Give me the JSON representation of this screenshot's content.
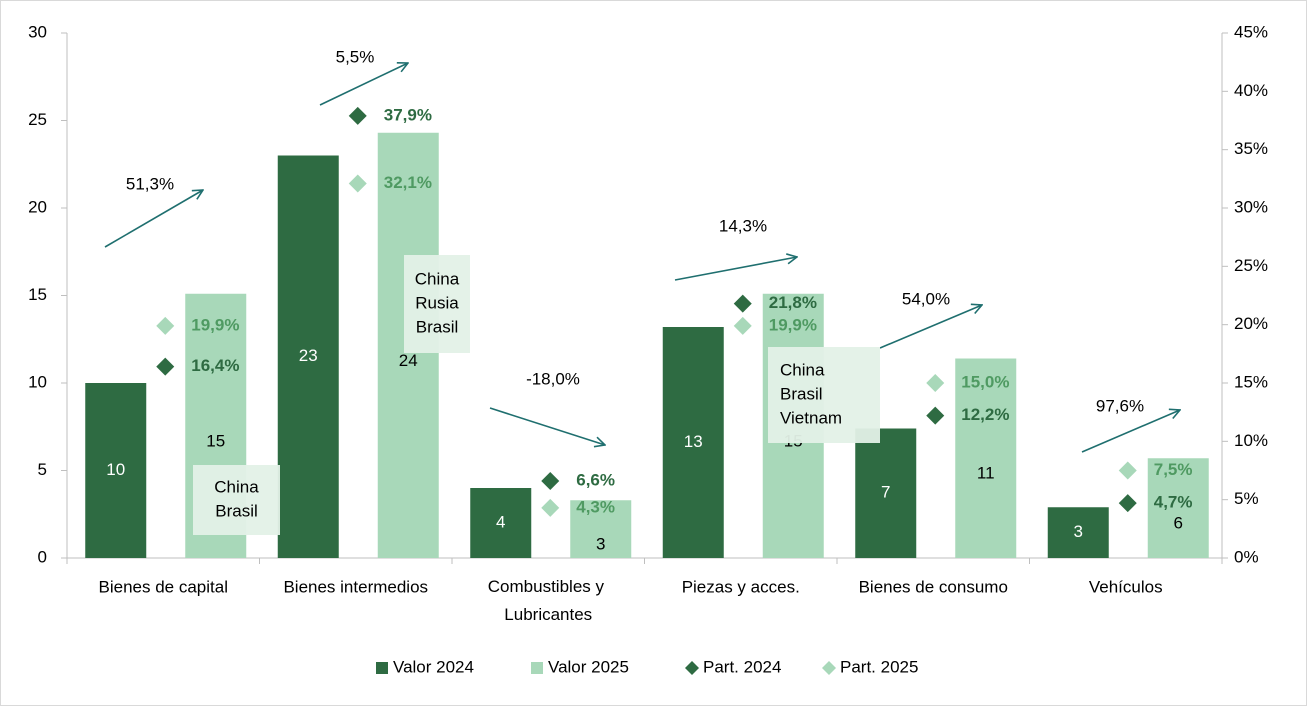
{
  "chart_data": {
    "type": "bar",
    "categories": [
      "Bienes de capital",
      "Bienes intermedios",
      "Combustibles y Lubricantes",
      "Piezas y acces.",
      "Bienes de consumo",
      "Vehículos"
    ],
    "series": [
      {
        "name": "Valor 2024",
        "type": "bar",
        "color": "#2e6b42",
        "label_color": "#ffffff",
        "values": [
          10,
          23,
          4,
          13.2,
          7.4,
          2.9
        ],
        "value_labels": [
          "10",
          "23",
          "4",
          "13",
          "7",
          "3"
        ]
      },
      {
        "name": "Valor 2025",
        "type": "bar",
        "color": "#a8d8b9",
        "label_color": "#000000",
        "values": [
          15.1,
          24.3,
          3.3,
          15.1,
          11.4,
          5.7
        ],
        "value_labels": [
          "15",
          "24",
          "3",
          "15",
          "11",
          "6"
        ]
      },
      {
        "name": "Part. 2024",
        "type": "scatter",
        "axis": "y2",
        "color": "#2e6b42",
        "label_color": "#2e6b42",
        "values": [
          16.4,
          37.9,
          6.6,
          21.8,
          12.2,
          4.7
        ],
        "value_labels": [
          "16,4%",
          "37,9%",
          "6,6%",
          "21,8%",
          "12,2%",
          "4,7%"
        ]
      },
      {
        "name": "Part. 2025",
        "type": "scatter",
        "axis": "y2",
        "color": "#a8d8b9",
        "label_color": "#4f9a62",
        "values": [
          19.9,
          32.1,
          4.3,
          19.9,
          15.0,
          7.5
        ],
        "value_labels": [
          "19,9%",
          "32,1%",
          "4,3%",
          "19,9%",
          "15,0%",
          "7,5%"
        ]
      }
    ],
    "ylim": [
      0,
      30
    ],
    "yticks": [
      0,
      5,
      10,
      15,
      20,
      25,
      30
    ],
    "y2lim": [
      0,
      45
    ],
    "y2ticks": [
      {
        "value": 0,
        "label": "0%"
      },
      {
        "value": 5,
        "label": "5%"
      },
      {
        "value": 10,
        "label": "10%"
      },
      {
        "value": 15,
        "label": "15%"
      },
      {
        "value": 20,
        "label": "20%"
      },
      {
        "value": 25,
        "label": "25%"
      },
      {
        "value": 30,
        "label": "30%"
      },
      {
        "value": 35,
        "label": "35%"
      },
      {
        "value": 40,
        "label": "40%"
      },
      {
        "value": 45,
        "label": "45%"
      }
    ],
    "annotations": [
      "51,3%",
      "5,5%",
      "-18,0%",
      "14,3%",
      "54,0%",
      "97,6%"
    ],
    "origin_boxes": [
      [
        "China",
        "Brasil"
      ],
      [
        "China",
        "Rusia",
        "Brasil"
      ],
      [
        "China",
        "Brasil",
        "Vietnam"
      ]
    ],
    "legend": "bottom"
  }
}
